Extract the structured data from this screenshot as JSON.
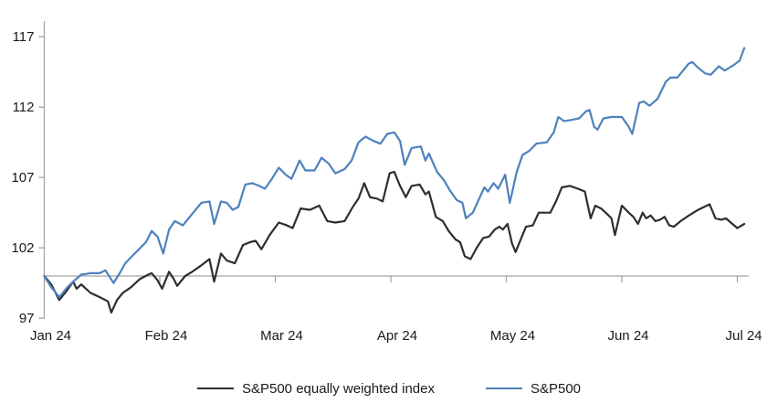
{
  "chart": {
    "background": "#ffffff",
    "axis_color": "#a3a3a3",
    "text_color": "#1a1a1a",
    "baseline_value": 100
  },
  "chart_data": {
    "type": "line",
    "title": "",
    "xlabel": "",
    "ylabel": "",
    "x_unit": "months since Jan 2024",
    "xlim": [
      0,
      6.1
    ],
    "ylim": [
      97,
      117.5
    ],
    "grid": "off",
    "legend_position": "bottom-center",
    "y_ticks": [
      117,
      112,
      107,
      102,
      97
    ],
    "x_tick_labels": [
      "Jan 24",
      "Feb 24",
      "Mar 24",
      "Apr 24",
      "May 24",
      "Jun 24",
      "Jul 24"
    ],
    "x_tick_positions": [
      0,
      1,
      2,
      3,
      4,
      5,
      6
    ],
    "baseline": 100,
    "series": [
      {
        "name": "S&P500 equally weighted index",
        "color": "#2e2e2e",
        "width": 2.2,
        "x": [
          0.0,
          0.06,
          0.13,
          0.19,
          0.25,
          0.28,
          0.32,
          0.4,
          0.48,
          0.55,
          0.58,
          0.63,
          0.68,
          0.75,
          0.83,
          0.9,
          0.93,
          0.98,
          1.02,
          1.08,
          1.12,
          1.15,
          1.22,
          1.28,
          1.35,
          1.43,
          1.47,
          1.53,
          1.58,
          1.65,
          1.72,
          1.78,
          1.83,
          1.88,
          1.95,
          2.03,
          2.1,
          2.15,
          2.22,
          2.3,
          2.38,
          2.45,
          2.52,
          2.6,
          2.67,
          2.72,
          2.77,
          2.82,
          2.88,
          2.93,
          2.99,
          3.03,
          3.08,
          3.13,
          3.18,
          3.25,
          3.3,
          3.33,
          3.39,
          3.45,
          3.5,
          3.56,
          3.6,
          3.64,
          3.69,
          3.75,
          3.8,
          3.85,
          3.9,
          3.94,
          3.97,
          4.01,
          4.05,
          4.08,
          4.13,
          4.17,
          4.23,
          4.28,
          4.38,
          4.43,
          4.48,
          4.55,
          4.62,
          4.68,
          4.73,
          4.77,
          4.82,
          4.86,
          4.91,
          4.94,
          5.0,
          5.06,
          5.1,
          5.14,
          5.18,
          5.21,
          5.25,
          5.29,
          5.33,
          5.37,
          5.41,
          5.45,
          5.51,
          5.58,
          5.66,
          5.76,
          5.81,
          5.86,
          5.9,
          6.0,
          6.06
        ],
        "y": [
          100.0,
          99.4,
          98.3,
          98.9,
          99.6,
          99.1,
          99.4,
          98.8,
          98.5,
          98.2,
          97.4,
          98.3,
          98.8,
          99.2,
          99.8,
          100.1,
          100.2,
          99.7,
          99.1,
          100.3,
          99.8,
          99.3,
          100.0,
          100.3,
          100.7,
          101.2,
          99.6,
          101.6,
          101.1,
          100.9,
          102.2,
          102.4,
          102.5,
          101.9,
          102.9,
          103.8,
          103.6,
          103.4,
          104.8,
          104.7,
          105.0,
          103.9,
          103.8,
          103.9,
          104.9,
          105.5,
          106.6,
          105.6,
          105.5,
          105.3,
          107.3,
          107.4,
          106.4,
          105.6,
          106.4,
          106.5,
          105.8,
          106.0,
          104.2,
          103.9,
          103.2,
          102.6,
          102.4,
          101.4,
          101.2,
          102.1,
          102.7,
          102.8,
          103.3,
          103.5,
          103.3,
          103.7,
          102.3,
          101.7,
          102.7,
          103.5,
          103.6,
          104.5,
          104.5,
          105.3,
          106.3,
          106.4,
          106.2,
          106.0,
          104.1,
          105.0,
          104.8,
          104.5,
          104.1,
          102.9,
          105.0,
          104.5,
          104.2,
          103.7,
          104.5,
          104.1,
          104.3,
          103.9,
          104.0,
          104.2,
          103.6,
          103.5,
          103.9,
          104.3,
          104.7,
          105.1,
          104.1,
          104.0,
          104.1,
          103.4,
          103.7
        ]
      },
      {
        "name": "S&P500",
        "color": "#4e81bd",
        "width": 2.2,
        "x": [
          0.0,
          0.06,
          0.13,
          0.2,
          0.25,
          0.32,
          0.4,
          0.48,
          0.53,
          0.6,
          0.66,
          0.7,
          0.76,
          0.82,
          0.88,
          0.93,
          0.98,
          1.03,
          1.08,
          1.13,
          1.2,
          1.28,
          1.36,
          1.43,
          1.47,
          1.53,
          1.58,
          1.63,
          1.68,
          1.74,
          1.8,
          1.86,
          1.91,
          1.97,
          2.03,
          2.09,
          2.14,
          2.21,
          2.26,
          2.34,
          2.4,
          2.46,
          2.52,
          2.6,
          2.66,
          2.72,
          2.78,
          2.85,
          2.91,
          2.97,
          3.03,
          3.08,
          3.12,
          3.18,
          3.26,
          3.3,
          3.33,
          3.4,
          3.46,
          3.51,
          3.57,
          3.62,
          3.65,
          3.71,
          3.76,
          3.81,
          3.84,
          3.89,
          3.93,
          3.99,
          4.03,
          4.09,
          4.14,
          4.2,
          4.26,
          4.35,
          4.41,
          4.45,
          4.5,
          4.57,
          4.63,
          4.69,
          4.72,
          4.76,
          4.79,
          4.84,
          4.91,
          5.0,
          5.06,
          5.09,
          5.15,
          5.19,
          5.24,
          5.31,
          5.38,
          5.42,
          5.48,
          5.53,
          5.58,
          5.61,
          5.66,
          5.72,
          5.77,
          5.84,
          5.89,
          5.97,
          6.02,
          6.06
        ],
        "y": [
          100.0,
          99.2,
          98.5,
          99.2,
          99.6,
          100.1,
          100.2,
          100.2,
          100.4,
          99.5,
          100.3,
          100.9,
          101.4,
          101.9,
          102.4,
          103.2,
          102.8,
          101.6,
          103.3,
          103.9,
          103.6,
          104.4,
          105.2,
          105.3,
          103.7,
          105.3,
          105.2,
          104.7,
          104.9,
          106.5,
          106.6,
          106.4,
          106.2,
          106.9,
          107.7,
          107.2,
          106.9,
          108.2,
          107.5,
          107.5,
          108.4,
          108.0,
          107.3,
          107.6,
          108.2,
          109.5,
          109.9,
          109.6,
          109.4,
          110.1,
          110.2,
          109.6,
          107.9,
          109.1,
          109.2,
          108.2,
          108.7,
          107.4,
          106.8,
          106.1,
          105.4,
          105.2,
          104.1,
          104.5,
          105.4,
          106.3,
          106.0,
          106.6,
          106.2,
          107.2,
          105.2,
          107.4,
          108.6,
          108.9,
          109.4,
          109.5,
          110.2,
          111.3,
          111.0,
          111.1,
          111.2,
          111.7,
          111.8,
          110.6,
          110.4,
          111.2,
          111.3,
          111.3,
          110.6,
          110.1,
          112.3,
          112.4,
          112.1,
          112.6,
          113.8,
          114.1,
          114.1,
          114.6,
          115.1,
          115.2,
          114.8,
          114.4,
          114.3,
          114.9,
          114.6,
          115.0,
          115.3,
          116.2
        ]
      }
    ]
  },
  "legend": {
    "items": [
      {
        "label": "S&P500 equally weighted index",
        "color": "#2e2e2e"
      },
      {
        "label": "S&P500",
        "color": "#4e81bd"
      }
    ]
  }
}
